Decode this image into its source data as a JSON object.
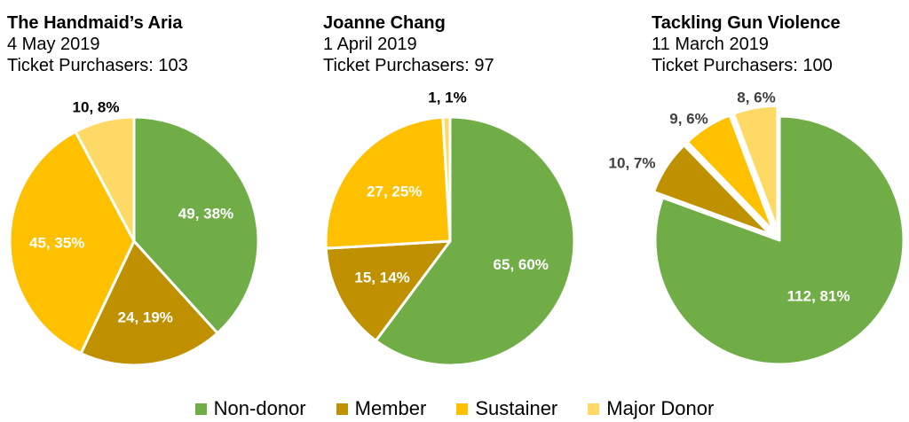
{
  "colors": {
    "non_donor": "#70AD47",
    "member": "#BF9000",
    "sustainer": "#FFC000",
    "major_donor": "#FFD966"
  },
  "legend": {
    "items": [
      {
        "label": "Non-donor",
        "color": "#70AD47"
      },
      {
        "label": "Member",
        "color": "#BF9000"
      },
      {
        "label": "Sustainer",
        "color": "#FFC000"
      },
      {
        "label": "Major Donor",
        "color": "#FFD966"
      }
    ]
  },
  "chart_data": [
    {
      "type": "pie",
      "title": "The Handmaid’s Aria",
      "date": "4 May 2019",
      "purchasers": "Ticket Purchasers: 103",
      "categories": [
        "Non-donor",
        "Member",
        "Sustainer",
        "Major Donor"
      ],
      "values": [
        49,
        24,
        45,
        10
      ],
      "labels": [
        "49, 38%",
        "24, 19%",
        "45, 35%",
        "10, 8%"
      ]
    },
    {
      "type": "pie",
      "title": "Joanne Chang",
      "date": "1 April 2019",
      "purchasers": "Ticket Purchasers: 97",
      "categories": [
        "Non-donor",
        "Member",
        "Sustainer",
        "Major Donor"
      ],
      "values": [
        65,
        15,
        27,
        1
      ],
      "labels": [
        "65, 60%",
        "15, 14%",
        "27, 25%",
        "1, 1%"
      ]
    },
    {
      "type": "pie",
      "title": "Tackling Gun Violence",
      "date": "11 March 2019",
      "purchasers": "Ticket Purchasers: 100",
      "categories": [
        "Non-donor",
        "Member",
        "Sustainer",
        "Major Donor"
      ],
      "values": [
        112,
        10,
        9,
        8
      ],
      "labels": [
        "112, 81%",
        "10, 7%",
        "9, 6%",
        "8, 6%"
      ]
    }
  ]
}
